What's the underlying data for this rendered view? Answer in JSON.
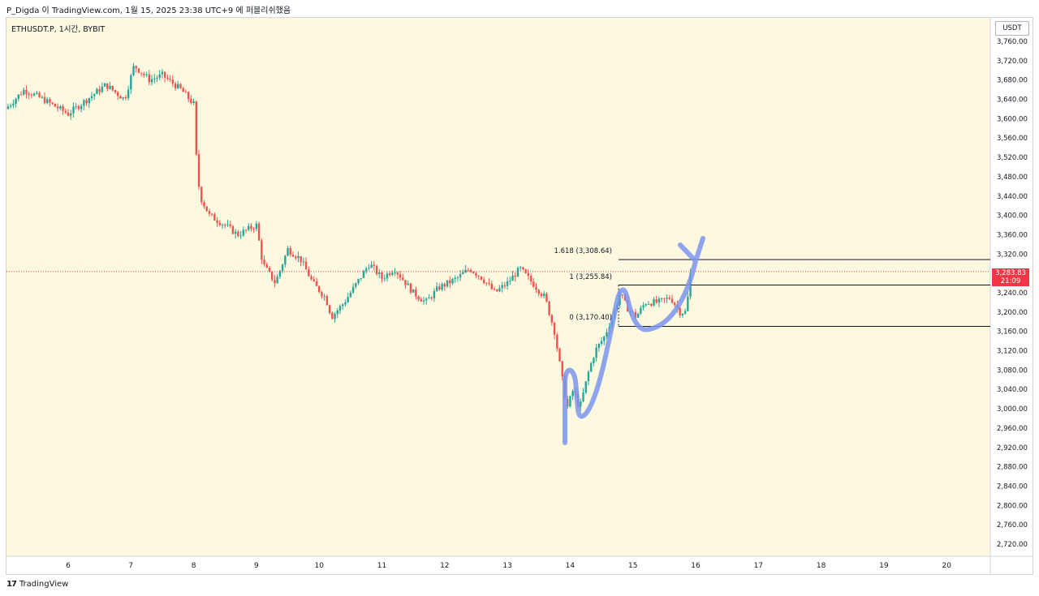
{
  "header": {
    "title": "P_Digda 이 TradingView.com, 1월 15, 2025 23:38 UTC+9 에 퍼블리쉬했음"
  },
  "symbol_info": "ETHUSDT.P, 1시간, BYBIT",
  "brand": {
    "logo": "17",
    "name": "TradingView"
  },
  "price_axis": {
    "unit": "USDT",
    "current_price": "3,283.83",
    "countdown": "21:09"
  },
  "fib_levels": [
    {
      "label": "1.618 (3,308.64)",
      "price": 3308.64
    },
    {
      "label": "1 (3,255.84)",
      "price": 3255.84
    },
    {
      "label": "0 (3,170.40)",
      "price": 3170.4
    }
  ],
  "colors": {
    "background": "#fdf9e1",
    "up": "#26a69a",
    "down": "#ef5350",
    "drawing": "#7b95ee",
    "current_price_line": "#f23645"
  },
  "chart_data": {
    "type": "candlestick",
    "title": "",
    "xlabel": "",
    "ylabel": "",
    "x_ticks": [
      "6",
      "7",
      "8",
      "9",
      "10",
      "11",
      "12",
      "13",
      "14",
      "15",
      "16",
      "17",
      "18",
      "19",
      "20"
    ],
    "y_ticks": [
      "2,720.00",
      "2,760.00",
      "2,800.00",
      "2,840.00",
      "2,880.00",
      "2,920.00",
      "2,960.00",
      "3,000.00",
      "3,040.00",
      "3,080.00",
      "3,120.00",
      "3,160.00",
      "3,200.00",
      "3,240.00",
      "3,280.00",
      "3,320.00",
      "3,360.00",
      "3,400.00",
      "3,440.00",
      "3,480.00",
      "3,520.00",
      "3,560.00",
      "3,600.00",
      "3,640.00",
      "3,680.00",
      "3,720.00",
      "3,760.00"
    ],
    "ylim": [
      2700,
      3780
    ],
    "x_range_days": [
      5.0,
      20.6
    ],
    "price_path": [
      [
        5.0,
        3620
      ],
      [
        5.3,
        3660
      ],
      [
        5.6,
        3640
      ],
      [
        6.0,
        3610
      ],
      [
        6.3,
        3640
      ],
      [
        6.6,
        3670
      ],
      [
        6.9,
        3640
      ],
      [
        7.05,
        3710
      ],
      [
        7.3,
        3680
      ],
      [
        7.5,
        3690
      ],
      [
        7.8,
        3660
      ],
      [
        8.0,
        3630
      ],
      [
        8.05,
        3500
      ],
      [
        8.1,
        3440
      ],
      [
        8.25,
        3400
      ],
      [
        8.5,
        3380
      ],
      [
        8.7,
        3360
      ],
      [
        9.0,
        3380
      ],
      [
        9.1,
        3300
      ],
      [
        9.3,
        3260
      ],
      [
        9.5,
        3330
      ],
      [
        9.7,
        3310
      ],
      [
        9.9,
        3260
      ],
      [
        10.1,
        3230
      ],
      [
        10.2,
        3190
      ],
      [
        10.4,
        3220
      ],
      [
        10.8,
        3300
      ],
      [
        11.0,
        3270
      ],
      [
        11.2,
        3290
      ],
      [
        11.5,
        3240
      ],
      [
        11.7,
        3220
      ],
      [
        11.9,
        3250
      ],
      [
        12.2,
        3270
      ],
      [
        12.4,
        3290
      ],
      [
        12.6,
        3270
      ],
      [
        12.8,
        3240
      ],
      [
        13.0,
        3260
      ],
      [
        13.2,
        3290
      ],
      [
        13.4,
        3260
      ],
      [
        13.6,
        3230
      ],
      [
        13.75,
        3160
      ],
      [
        13.85,
        3080
      ],
      [
        13.95,
        3000
      ],
      [
        14.05,
        3040
      ],
      [
        14.15,
        3000
      ],
      [
        14.3,
        3080
      ],
      [
        14.4,
        3120
      ],
      [
        14.55,
        3150
      ],
      [
        14.7,
        3200
      ],
      [
        14.8,
        3240
      ],
      [
        14.9,
        3210
      ],
      [
        15.05,
        3190
      ],
      [
        15.2,
        3220
      ],
      [
        15.4,
        3220
      ],
      [
        15.6,
        3230
      ],
      [
        15.75,
        3200
      ],
      [
        15.85,
        3200
      ],
      [
        15.92,
        3283.83
      ]
    ],
    "last_price": 3283.83
  }
}
